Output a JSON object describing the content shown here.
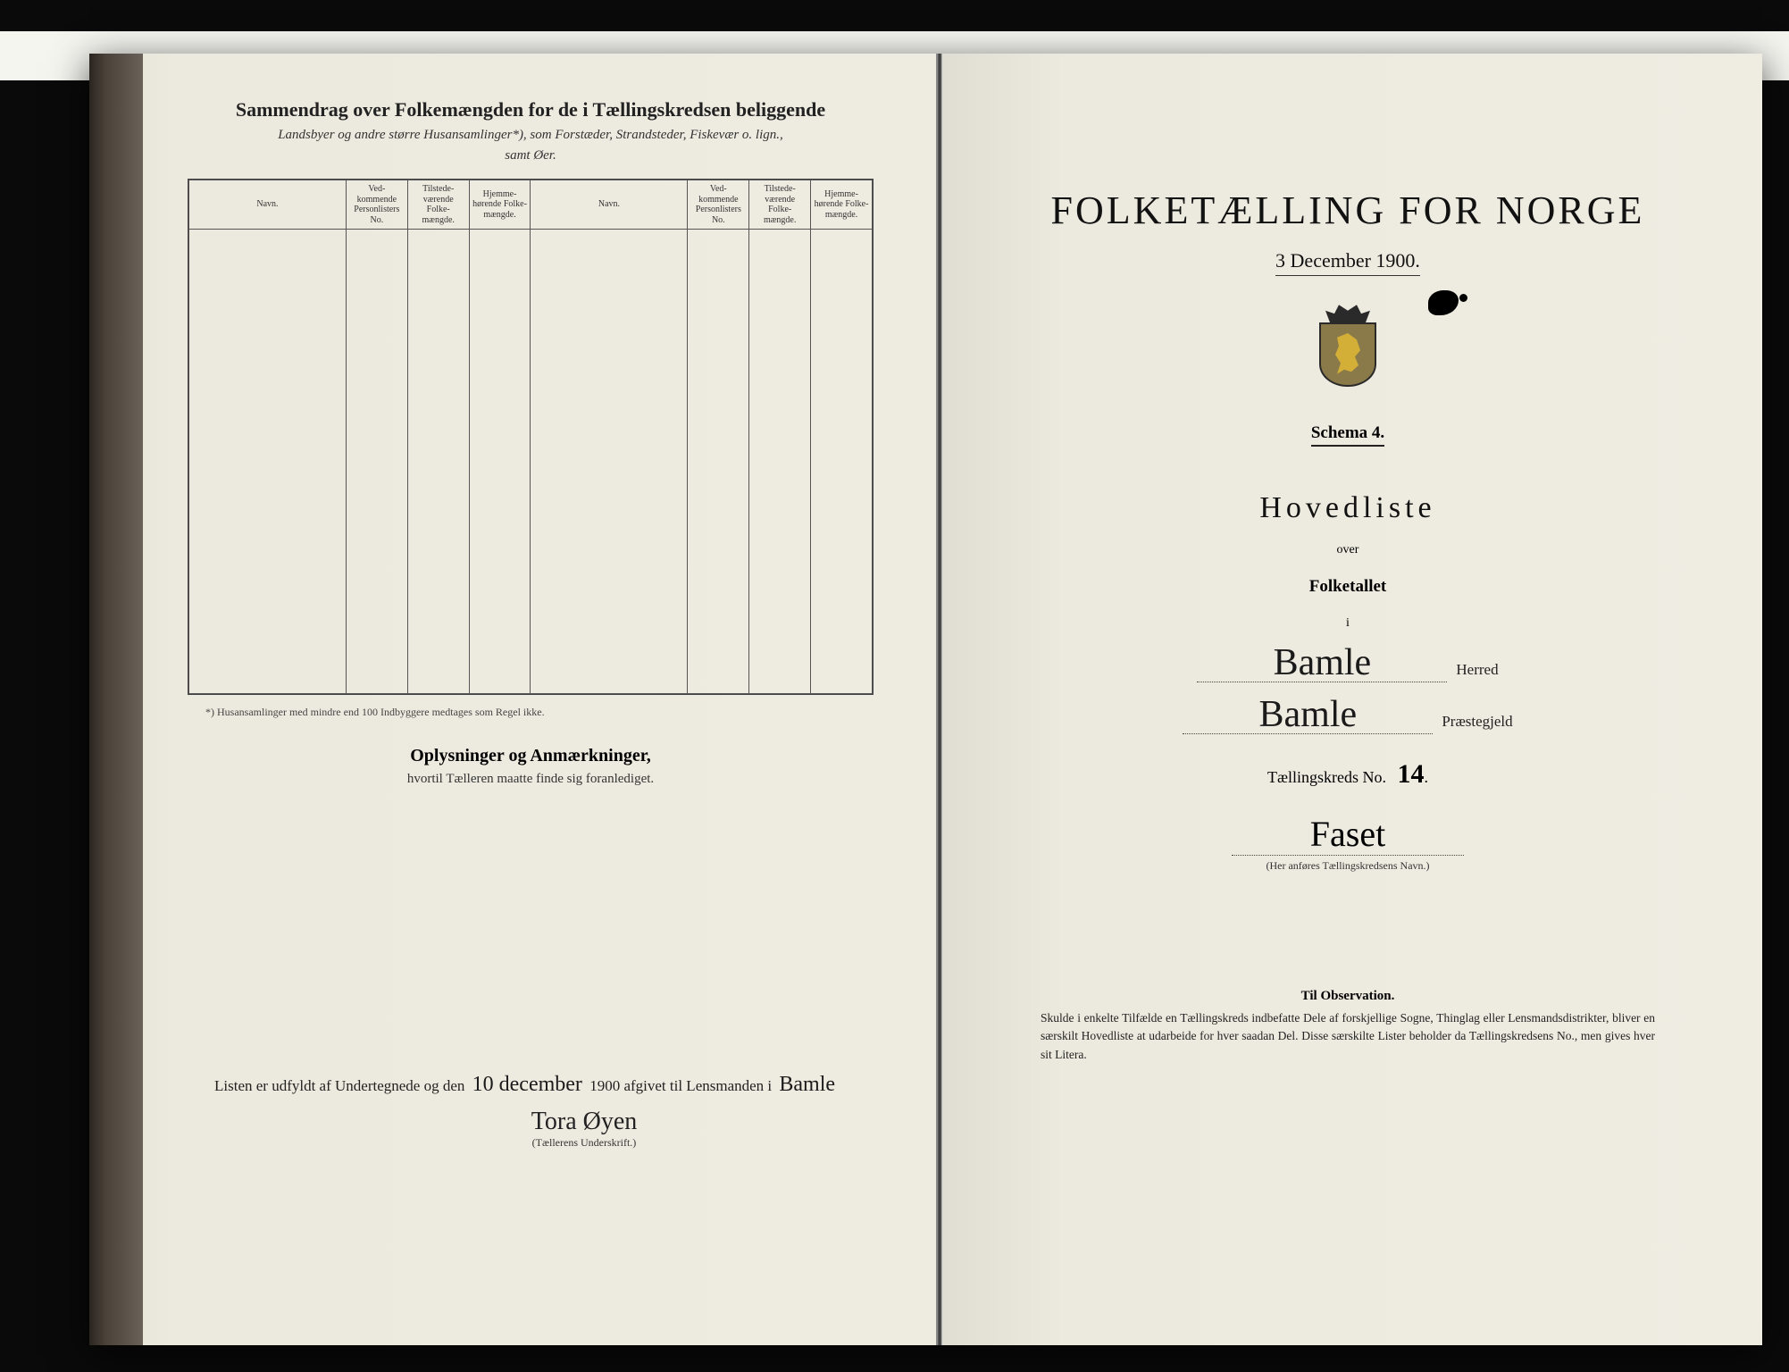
{
  "colors": {
    "background": "#0a0a0a",
    "paper": "#edeae0",
    "ink": "#1a1a1a",
    "rule": "#444"
  },
  "leftPage": {
    "title": "Sammendrag over Folkemængden for de i Tællingskredsen beliggende",
    "subtitle_line1": "Landsbyer og andre større Husansamlinger*), som Forstæder, Strandsteder, Fiskevær o. lign.,",
    "subtitle_line2": "samt Øer.",
    "columns": {
      "navn": "Navn.",
      "vedkommende": "Ved-kommende Personlisters No.",
      "tilstede": "Tilstede-værende Folke-mængde.",
      "hjemme": "Hjemme-hørende Folke-mængde."
    },
    "footnote": "*) Husansamlinger med mindre end 100 Indbyggere medtages som Regel ikke.",
    "remarks_title": "Oplysninger og Anmærkninger,",
    "remarks_sub": "hvortil Tælleren maatte finde sig foranlediget.",
    "signoff_pre": "Listen er udfyldt af Undertegnede og den",
    "signoff_date": "10 december",
    "signoff_year": "1900",
    "signoff_mid": "afgivet til Lensmanden i",
    "signoff_place": "Bamle",
    "signer": "Tora Øyen",
    "signer_caption": "(Tællerens Underskrift.)"
  },
  "rightPage": {
    "title": "FOLKETÆLLING FOR NORGE",
    "date": "3 December 1900.",
    "schema": "Schema 4.",
    "hovedliste": "Hovedliste",
    "over": "over",
    "folketallet": "Folketallet",
    "i": "i",
    "herred_value": "Bamle",
    "herred_label": "Herred",
    "praestegjeld_value": "Bamle",
    "praestegjeld_label": "Præstegjeld",
    "kreds_label": "Tællingskreds No.",
    "kreds_no": "14",
    "kreds_name": "Faset",
    "kreds_caption": "(Her anføres Tællingskredsens Navn.)",
    "obs_title": "Til Observation.",
    "obs_text": "Skulde i enkelte Tilfælde en Tællingskreds indbefatte Dele af forskjellige Sogne, Thinglag eller Lensmandsdistrikter, bliver en særskilt Hovedliste at udarbeide for hver saadan Del. Disse særskilte Lister beholder da Tællingskredsens No., men gives hver sit Litera."
  }
}
